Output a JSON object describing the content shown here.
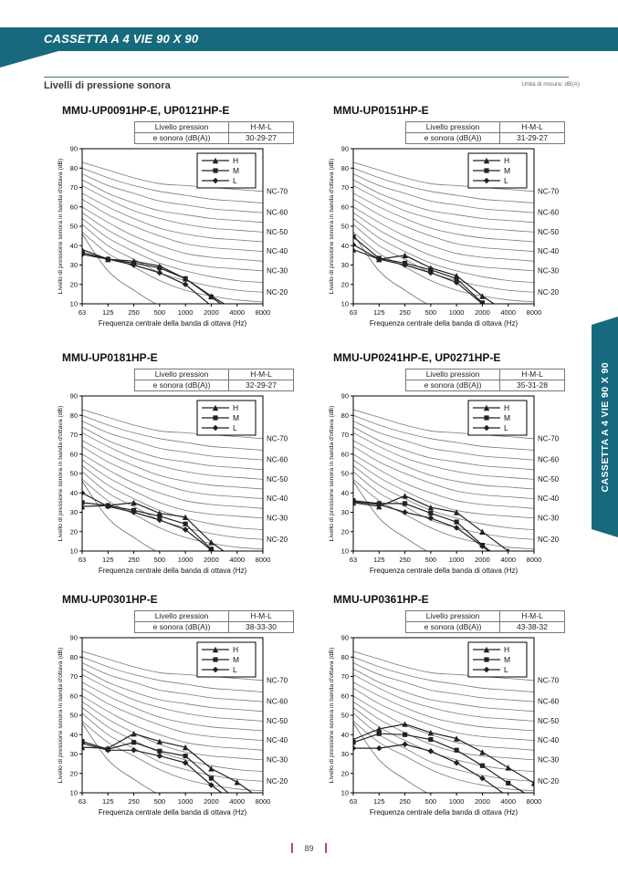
{
  "page": {
    "header": {
      "title": "CASSETTA A 4 VIE 90 X 90"
    },
    "section": {
      "title": "Livelli di pressione sonora",
      "unit_note": "Unità di misura: dB(A)"
    },
    "side_tab": {
      "label": "CASSETTA A 4 VIE 90 X 90"
    },
    "footer": {
      "page_number": "89"
    },
    "colors": {
      "accent_teal": "#17697e",
      "footer_marker_red": "#c44a4a"
    }
  },
  "chart_common": {
    "type": "line",
    "xlabel": "Frequenza centrale della banda di ottava (Hz)",
    "ylabel": "Livello di pressione sonora in banda d'ottava (dB)",
    "x_tick_labels": [
      "63",
      "125",
      "250",
      "500",
      "1000",
      "2000",
      "4000",
      "8000"
    ],
    "y_tick_labels": [
      10,
      20,
      30,
      40,
      50,
      60,
      70,
      80,
      90
    ],
    "ylim": [
      10,
      90
    ],
    "grid": false,
    "legend_position": "top-right",
    "legend": [
      {
        "label": "H",
        "marker": "triangle"
      },
      {
        "label": "M",
        "marker": "square"
      },
      {
        "label": "L",
        "marker": "diamond"
      }
    ],
    "table": {
      "label_line1": "Livello pression",
      "label_line2": "e sonora (dB(A))",
      "header": "H-M-L"
    },
    "nc_labels": [
      {
        "label": "NC-70",
        "at": 68
      },
      {
        "label": "NC-60",
        "at": 57
      },
      {
        "label": "NC-50",
        "at": 47
      },
      {
        "label": "NC-40",
        "at": 37
      },
      {
        "label": "NC-30",
        "at": 27
      },
      {
        "label": "NC-20",
        "at": 16
      }
    ],
    "nc_curves": [
      {
        "name": "NC-15",
        "values": [
          47,
          36,
          29,
          22,
          17,
          14,
          12,
          11
        ]
      },
      {
        "name": "NC-20",
        "values": [
          51,
          40,
          33,
          26,
          22,
          19,
          17,
          16
        ]
      },
      {
        "name": "NC-25",
        "values": [
          54,
          44,
          37,
          31,
          27,
          24,
          22,
          21
        ]
      },
      {
        "name": "NC-30",
        "values": [
          57,
          48,
          41,
          35,
          31,
          29,
          28,
          27
        ]
      },
      {
        "name": "NC-35",
        "values": [
          60,
          52,
          45,
          40,
          36,
          34,
          33,
          32
        ]
      },
      {
        "name": "NC-40",
        "values": [
          64,
          56,
          50,
          45,
          41,
          39,
          38,
          37
        ]
      },
      {
        "name": "NC-45",
        "values": [
          67,
          60,
          54,
          49,
          46,
          44,
          43,
          42
        ]
      },
      {
        "name": "NC-50",
        "values": [
          71,
          64,
          58,
          54,
          51,
          49,
          48,
          47
        ]
      },
      {
        "name": "NC-55",
        "values": [
          74,
          67,
          62,
          58,
          56,
          54,
          53,
          52
        ]
      },
      {
        "name": "NC-60",
        "values": [
          77,
          71,
          67,
          63,
          61,
          59,
          58,
          57
        ]
      },
      {
        "name": "NC-65",
        "values": [
          80,
          75,
          71,
          68,
          66,
          64,
          63,
          62
        ]
      },
      {
        "name": "NC-70",
        "values": [
          83,
          79,
          75,
          72,
          71,
          70,
          69,
          68
        ]
      }
    ],
    "threshold_curve": [
      46,
      27,
      17,
      9,
      5,
      3,
      2,
      1
    ],
    "series_color": "#222222",
    "nc_color": "#7a7a7a"
  },
  "chart_data": [
    {
      "type": "line",
      "title": "MMU-UP0091HP-E, UP0121HP-E",
      "table_value": "30-29-27",
      "x": [
        63,
        125,
        250,
        500,
        1000,
        2000,
        4000,
        8000
      ],
      "series": [
        {
          "name": "H",
          "marker": "triangle",
          "values": [
            38,
            33,
            32,
            29.5,
            23,
            14,
            6,
            0
          ]
        },
        {
          "name": "M",
          "marker": "square",
          "values": [
            36.5,
            33,
            31,
            28.5,
            23,
            13.5,
            4,
            0
          ]
        },
        {
          "name": "L",
          "marker": "diamond",
          "values": [
            35.5,
            33,
            30,
            26,
            20,
            9,
            2,
            0
          ]
        }
      ]
    },
    {
      "type": "line",
      "title": "MMU-UP0151HP-E",
      "table_value": "31-29-27",
      "x": [
        63,
        125,
        250,
        500,
        1000,
        2000,
        4000,
        8000
      ],
      "series": [
        {
          "name": "H",
          "marker": "triangle",
          "values": [
            38,
            33,
            35,
            28.5,
            24.5,
            14,
            5,
            0
          ]
        },
        {
          "name": "M",
          "marker": "square",
          "values": [
            44.5,
            33.5,
            31,
            27.5,
            23,
            10.5,
            2,
            0
          ]
        },
        {
          "name": "L",
          "marker": "diamond",
          "values": [
            40.5,
            33,
            30,
            26,
            21,
            10,
            1,
            0
          ]
        }
      ]
    },
    {
      "type": "line",
      "title": "MMU-UP0181HP-E",
      "table_value": "32-29-27",
      "x": [
        63,
        125,
        250,
        500,
        1000,
        2000,
        4000,
        8000
      ],
      "series": [
        {
          "name": "H",
          "marker": "triangle",
          "values": [
            33,
            33.5,
            35,
            29.5,
            27.5,
            14.5,
            5,
            0
          ]
        },
        {
          "name": "M",
          "marker": "square",
          "values": [
            35,
            33.5,
            31,
            28,
            24,
            11,
            2,
            0
          ]
        },
        {
          "name": "L",
          "marker": "diamond",
          "values": [
            40,
            33,
            30,
            26,
            21,
            10.5,
            1,
            0
          ]
        }
      ]
    },
    {
      "type": "line",
      "title": "MMU-UP0241HP-E, UP0271HP-E",
      "table_value": "35-31-28",
      "x": [
        63,
        125,
        250,
        500,
        1000,
        2000,
        4000,
        8000
      ],
      "series": [
        {
          "name": "H",
          "marker": "triangle",
          "values": [
            35,
            33,
            38.5,
            32.5,
            30,
            20,
            10,
            0
          ]
        },
        {
          "name": "M",
          "marker": "square",
          "values": [
            36,
            34.5,
            34.5,
            29.5,
            25,
            13,
            3,
            0
          ]
        },
        {
          "name": "L",
          "marker": "diamond",
          "values": [
            35.5,
            34,
            30,
            27,
            22,
            12.5,
            2,
            0
          ]
        }
      ]
    },
    {
      "type": "line",
      "title": "MMU-UP0301HP-E",
      "table_value": "38-33-30",
      "x": [
        63,
        125,
        250,
        500,
        1000,
        2000,
        4000,
        8000
      ],
      "series": [
        {
          "name": "H",
          "marker": "triangle",
          "values": [
            33.5,
            33,
            40.5,
            36.5,
            33.5,
            22.5,
            15.5,
            6
          ]
        },
        {
          "name": "M",
          "marker": "square",
          "values": [
            36.5,
            32.5,
            36,
            31.5,
            29,
            17.5,
            6,
            0
          ]
        },
        {
          "name": "L",
          "marker": "diamond",
          "values": [
            35.5,
            32,
            32,
            29,
            25.5,
            14,
            4,
            0
          ]
        }
      ]
    },
    {
      "type": "line",
      "title": "MMU-UP0361HP-E",
      "table_value": "43-38-32",
      "x": [
        63,
        125,
        250,
        500,
        1000,
        2000,
        4000,
        8000
      ],
      "series": [
        {
          "name": "H",
          "marker": "triangle",
          "values": [
            37.5,
            43,
            45.5,
            41,
            38,
            31,
            23,
            15
          ]
        },
        {
          "name": "M",
          "marker": "square",
          "values": [
            36,
            40.5,
            40,
            37.5,
            32,
            24,
            15,
            7
          ]
        },
        {
          "name": "L",
          "marker": "diamond",
          "values": [
            33,
            33,
            35,
            31.5,
            25.5,
            17.5,
            8,
            0
          ]
        }
      ]
    }
  ]
}
